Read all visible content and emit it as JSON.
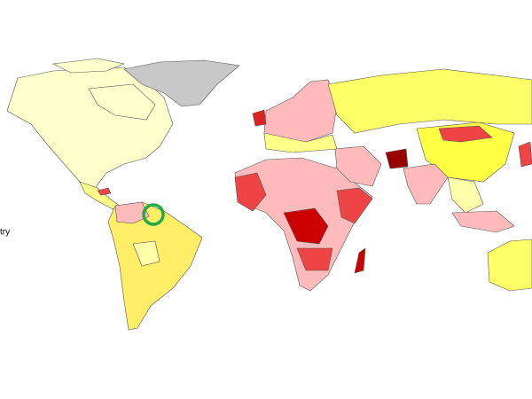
{
  "legend": {
    "label_fragment": "try"
  }
}
